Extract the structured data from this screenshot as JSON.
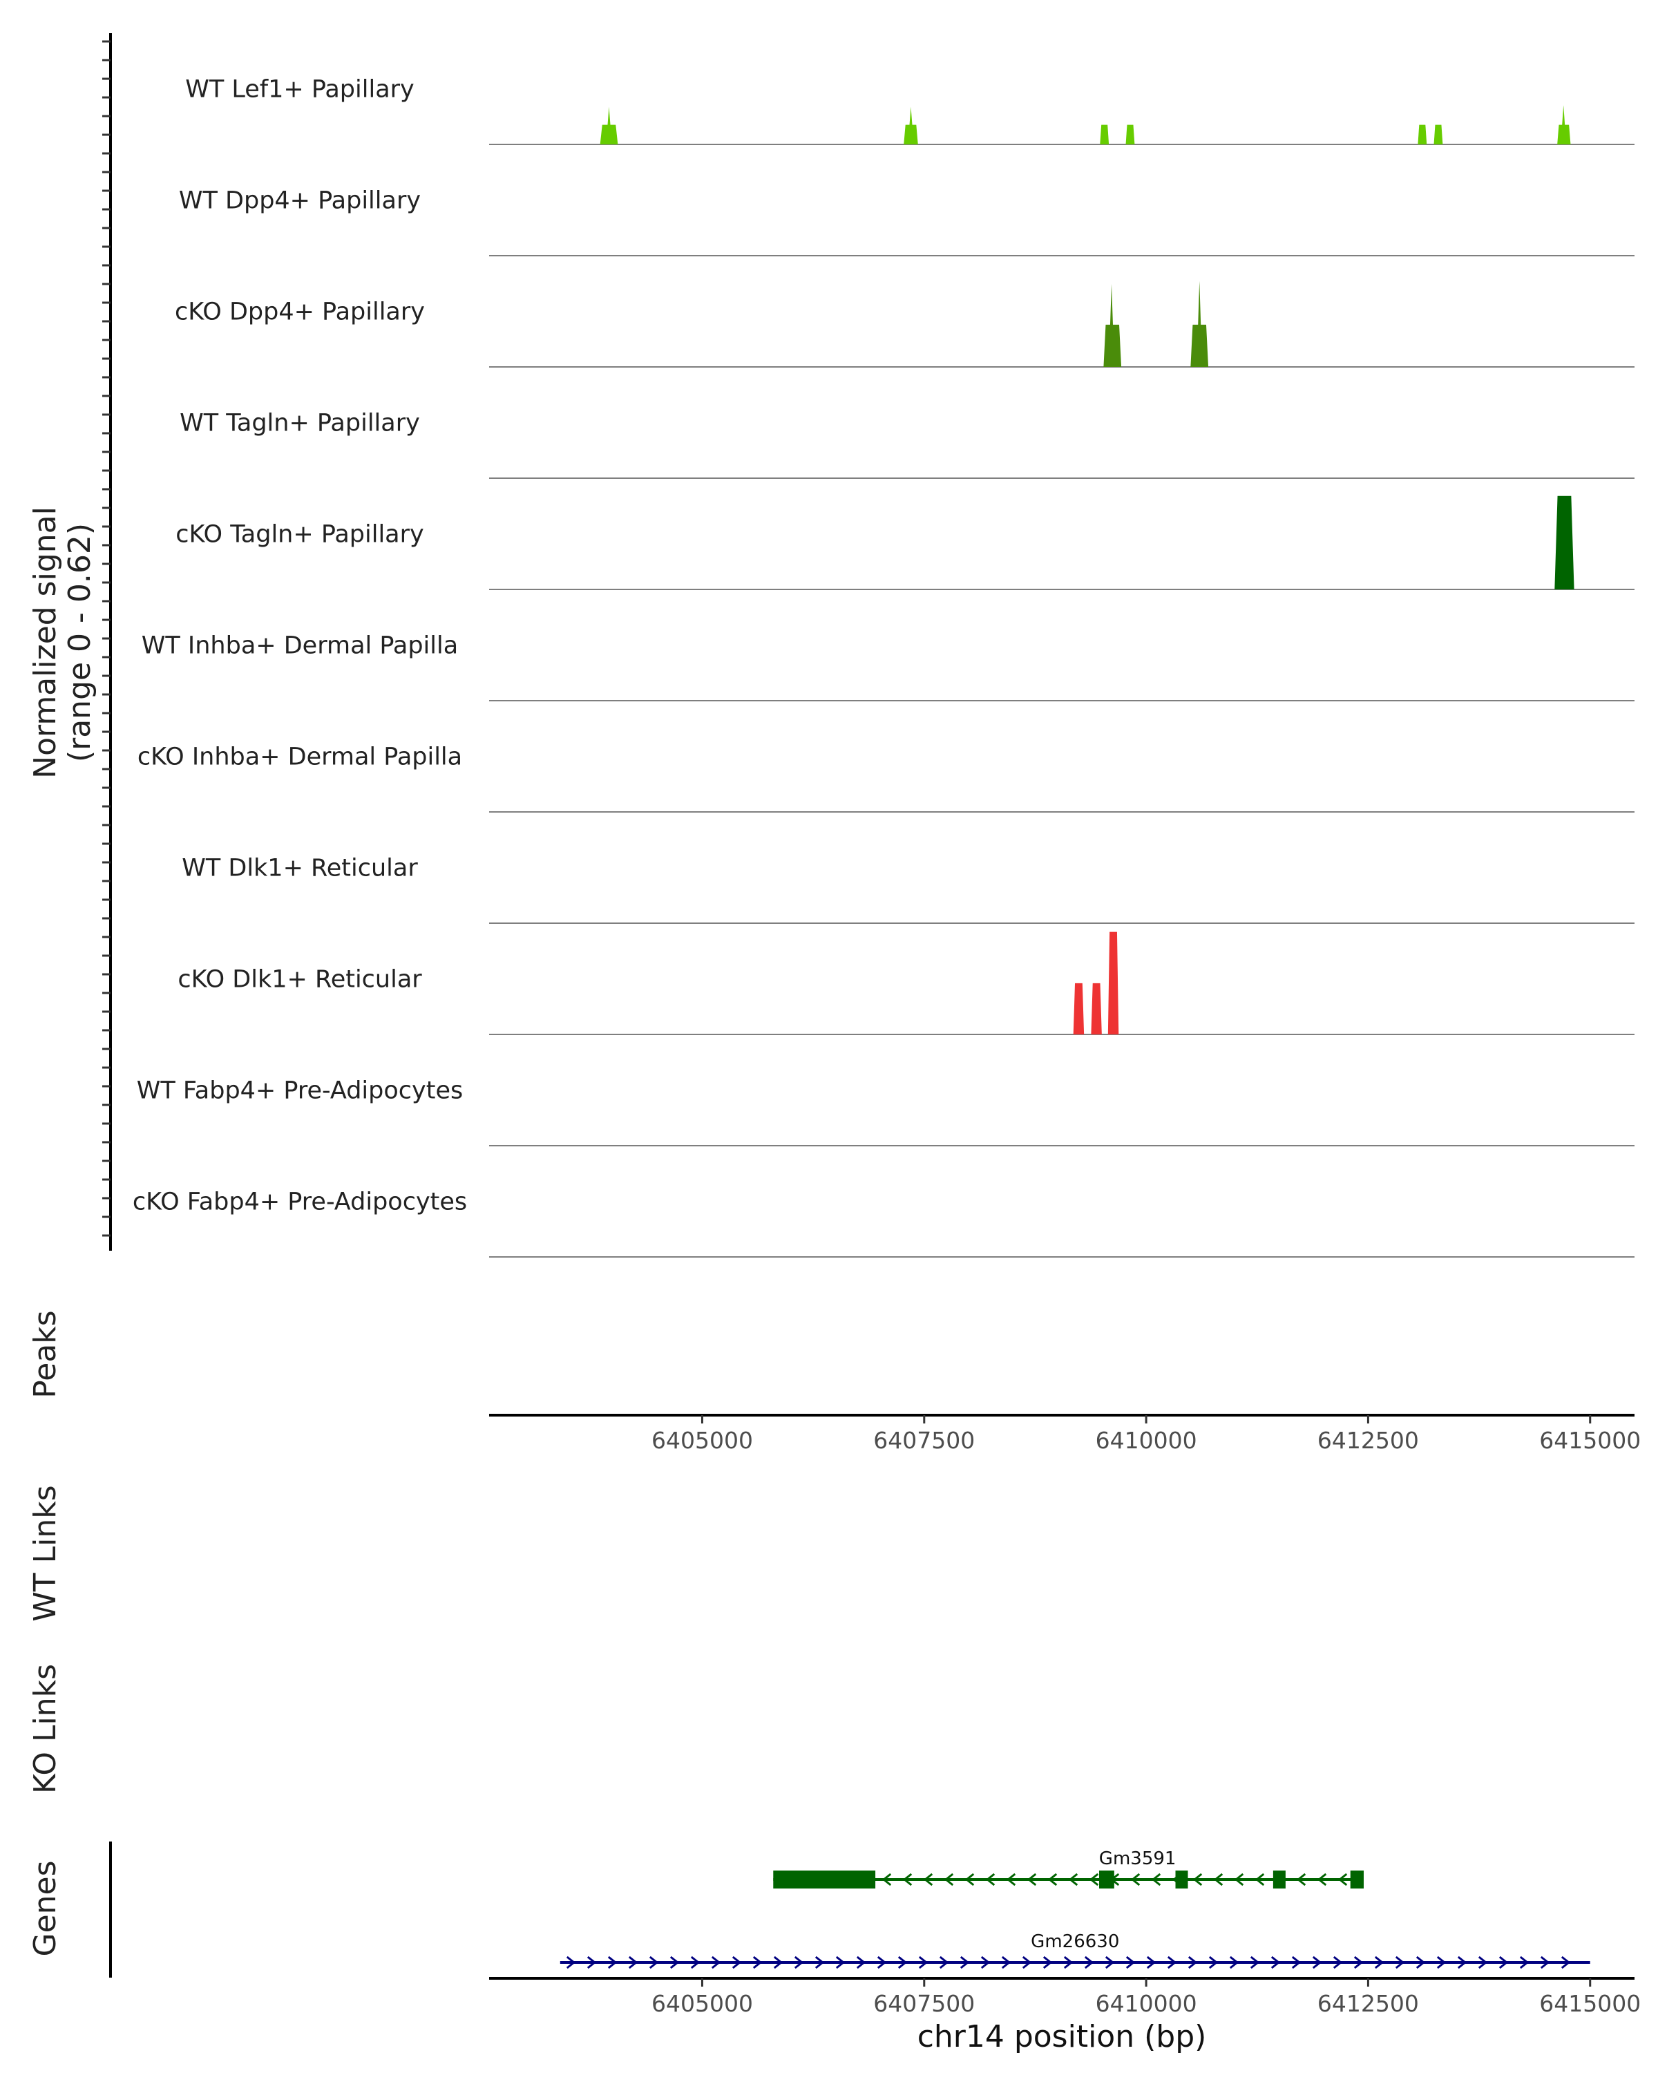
{
  "chart_data": {
    "type": "area",
    "region": "chr14",
    "x_range": [
      6402600,
      6415500
    ],
    "x_ticks": [
      6405000,
      6407500,
      6410000,
      6412500,
      6415000
    ],
    "x_tick_labels": [
      "6405000",
      "6407500",
      "6410000",
      "6412500",
      "6415000"
    ],
    "xlabel": "chr14 position (bp)",
    "ylabel": [
      "Normalized signal",
      "(range 0 - 0.62)"
    ],
    "y_range": [
      0,
      0.62
    ],
    "colors": {
      "light_green": "#66cc00",
      "mid_green": "#4a8c0a",
      "dark_green": "#006400",
      "red": "#ee3333",
      "gene_minus": "#006400",
      "gene_plus": "#000080"
    },
    "tracks": [
      {
        "name": "WT Lef1+ Papillary",
        "color": "light_green",
        "peaks": [
          {
            "start": 6403850,
            "end": 6404050,
            "value": 0.13,
            "summit": 6403950,
            "summit_value": 0.25
          },
          {
            "start": 6407270,
            "end": 6407430,
            "value": 0.13,
            "summit": 6407350,
            "summit_value": 0.25
          },
          {
            "start": 6409480,
            "end": 6409580,
            "value": 0.13
          },
          {
            "start": 6409770,
            "end": 6409870,
            "value": 0.13
          },
          {
            "start": 6413060,
            "end": 6413160,
            "value": 0.13
          },
          {
            "start": 6413240,
            "end": 6413340,
            "value": 0.13
          },
          {
            "start": 6414630,
            "end": 6414780,
            "value": 0.13,
            "summit": 6414700,
            "summit_value": 0.26
          }
        ]
      },
      {
        "name": "WT Dpp4+ Papillary",
        "color": "light_green",
        "peaks": []
      },
      {
        "name": "cKO Dpp4+ Papillary",
        "color": "mid_green",
        "peaks": [
          {
            "start": 6409520,
            "end": 6409720,
            "value": 0.28,
            "summit": 6409610,
            "summit_value": 0.55
          },
          {
            "start": 6410500,
            "end": 6410700,
            "value": 0.28,
            "summit": 6410600,
            "summit_value": 0.57
          }
        ]
      },
      {
        "name": "WT Tagln+ Papillary",
        "color": "mid_green",
        "peaks": []
      },
      {
        "name": "cKO Tagln+ Papillary",
        "color": "dark_green",
        "peaks": [
          {
            "start": 6414600,
            "end": 6414820,
            "value": 0.62
          }
        ]
      },
      {
        "name": "WT Inhba+ Dermal Papilla",
        "color": "dark_green",
        "peaks": []
      },
      {
        "name": "cKO Inhba+ Dermal Papilla",
        "color": "dark_green",
        "peaks": []
      },
      {
        "name": "WT Dlk1+ Reticular",
        "color": "red",
        "peaks": []
      },
      {
        "name": "cKO Dlk1+ Reticular",
        "color": "red",
        "peaks": [
          {
            "start": 6409180,
            "end": 6409300,
            "value": 0.34
          },
          {
            "start": 6409380,
            "end": 6409500,
            "value": 0.34
          },
          {
            "start": 6409570,
            "end": 6409690,
            "value": 0.68
          }
        ]
      },
      {
        "name": "WT Fabp4+ Pre-Adipocytes",
        "color": "red",
        "peaks": []
      },
      {
        "name": "cKO Fabp4+ Pre-Adipocytes",
        "color": "red",
        "peaks": []
      }
    ],
    "panels": {
      "peaks": "Peaks",
      "wt_links": "WT Links",
      "ko_links": "KO Links",
      "genes": "Genes"
    },
    "genes": [
      {
        "name": "Gm3591",
        "strand": "-",
        "color": "gene_minus",
        "start": 6405800,
        "end": 6412450,
        "exons": [
          [
            6405800,
            6406950
          ],
          [
            6409470,
            6409640
          ],
          [
            6410330,
            6410470
          ],
          [
            6411430,
            6411570
          ],
          [
            6412300,
            6412450
          ]
        ]
      },
      {
        "name": "Gm26630",
        "strand": "+",
        "color": "gene_plus",
        "start": 6403400,
        "end": 6415000,
        "exons": []
      }
    ]
  }
}
